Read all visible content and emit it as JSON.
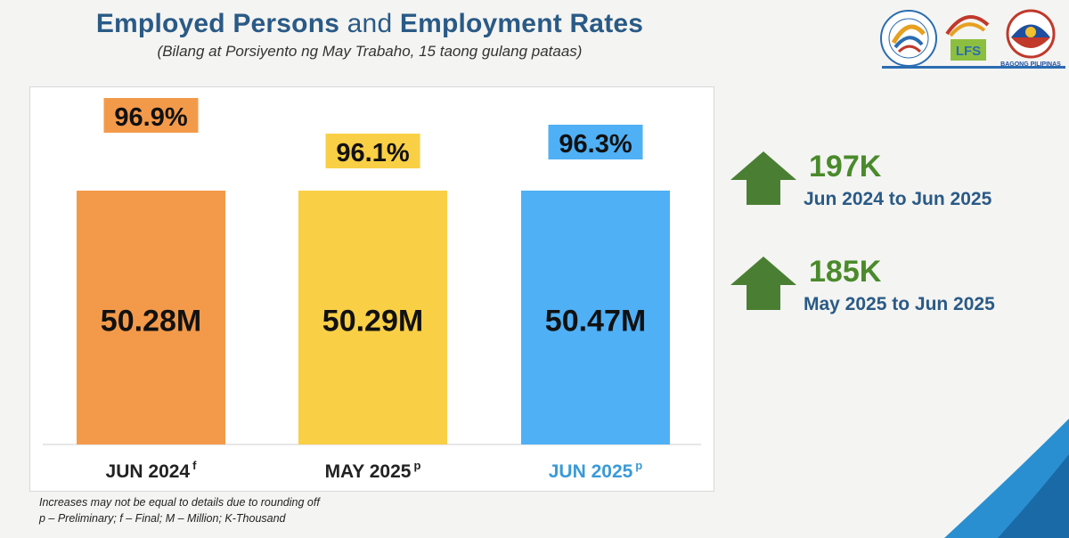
{
  "header": {
    "title_part1": "Employed Persons",
    "title_part2": "and",
    "title_part3": "Employment Rates",
    "subtitle": "(Bilang at Porsiyento ng May Trabaho, 15 taong gulang pataas)"
  },
  "chart_data": {
    "type": "bar",
    "title": "Employed Persons and Employment Rates",
    "subtitle": "(Bilang at Porsiyento ng May Trabaho, 15 taong gulang pataas)",
    "categories": [
      "JUN 2024",
      "MAY 2025",
      "JUN 2025"
    ],
    "superscripts": [
      "f",
      "p",
      "p"
    ],
    "employed_millions": [
      50.28,
      50.29,
      50.47
    ],
    "value_labels": [
      "50.28M",
      "50.29M",
      "50.47M"
    ],
    "employment_rates": [
      96.9,
      96.1,
      96.3
    ],
    "rate_labels": [
      "96.9%",
      "96.1%",
      "96.3%"
    ],
    "colors": [
      "#f39a4a",
      "#f9cf45",
      "#4fb0f5"
    ],
    "label_colors": [
      "#222222",
      "#222222",
      "#3a9ad8"
    ]
  },
  "changes": [
    {
      "value": "197K",
      "period": "Jun 2024 to Jun 2025",
      "icon": "up-arrow-icon"
    },
    {
      "value": "185K",
      "period": "May 2025 to Jun 2025",
      "icon": "up-arrow-icon"
    }
  ],
  "notes": {
    "line1": "Increases  may not be equal to details due to rounding off",
    "line2": "p – Preliminary; f – Final; M – Million; K-Thousand"
  },
  "logos": {
    "logo2_text": "LFS",
    "logo3_text": "BAGONG PILIPINAS"
  },
  "colors": {
    "title_blue": "#2a5a86",
    "arrow_green": "#4a7f33",
    "change_green": "#4a8a2c"
  }
}
